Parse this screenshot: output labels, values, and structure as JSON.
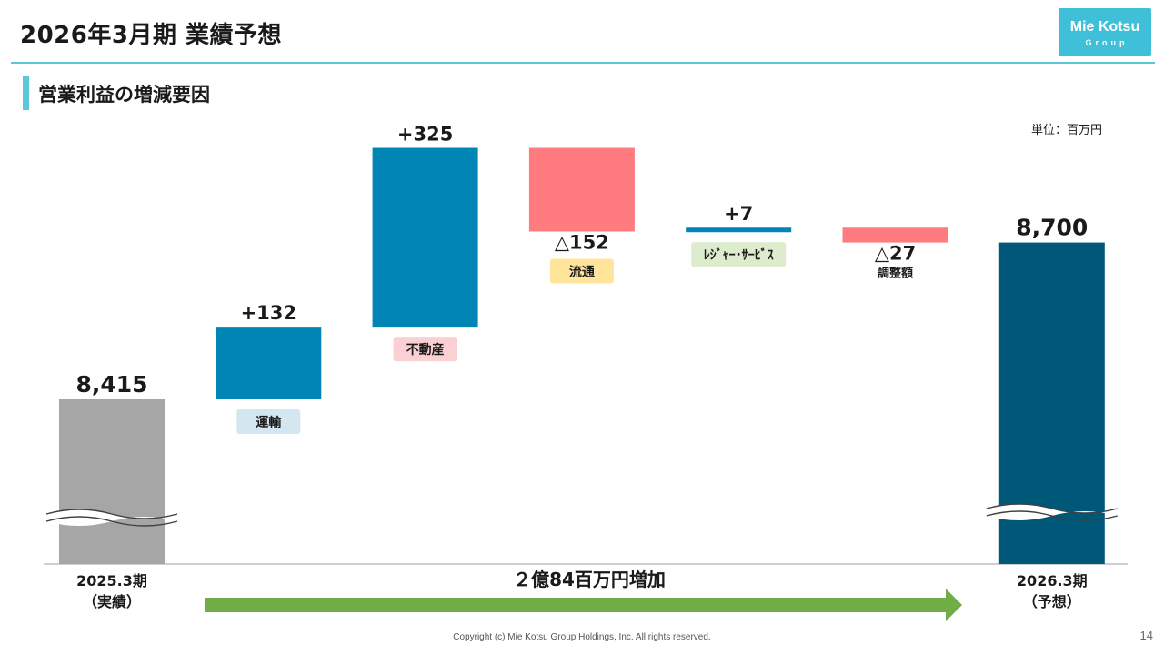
{
  "header": {
    "title": "2026年3月期 業績予想",
    "logo_name": "Mie Kotsu",
    "logo_sub": "Group"
  },
  "section": {
    "title": "営業利益の増減要因"
  },
  "unit_label": "単位：百万円",
  "chart_data": {
    "type": "waterfall",
    "y_unit": "百万円",
    "axis_break": true,
    "steps": [
      {
        "kind": "total",
        "value": 8415,
        "value_label": "8,415",
        "category": "2025.3期",
        "category_sub": "（実績）",
        "color": "#a6a6a6"
      },
      {
        "kind": "delta",
        "value": 132,
        "value_label": "+132",
        "category": "運輸",
        "color": "#0085b4",
        "tag_color": "#d4e6ef"
      },
      {
        "kind": "delta",
        "value": 325,
        "value_label": "+325",
        "category": "不動産",
        "color": "#0085b4",
        "tag_color": "#fbd0d3"
      },
      {
        "kind": "delta",
        "value": -152,
        "value_label": "△152",
        "category": "流通",
        "color": "#ff7b80",
        "tag_color": "#ffe59b"
      },
      {
        "kind": "delta",
        "value": 7,
        "value_label": "+7",
        "category": "ﾚｼﾞｬｰ･ｻｰﾋﾞｽ",
        "color": "#0085b4",
        "tag_color": "#dceccc"
      },
      {
        "kind": "delta",
        "value": -27,
        "value_label": "△27",
        "category": "調整額",
        "color": "#ff7b80",
        "tag_color": null
      },
      {
        "kind": "total",
        "value": 8700,
        "value_label": "8,700",
        "category": "2026.3期",
        "category_sub": "（予想）",
        "color": "#005878"
      }
    ],
    "change_label": "２億84百万円増加",
    "arrow_color": "#70ad47"
  },
  "footer": {
    "copyright": "Copyright (c) Mie Kotsu Group Holdings, Inc. All rights reserved.",
    "page": "14"
  }
}
